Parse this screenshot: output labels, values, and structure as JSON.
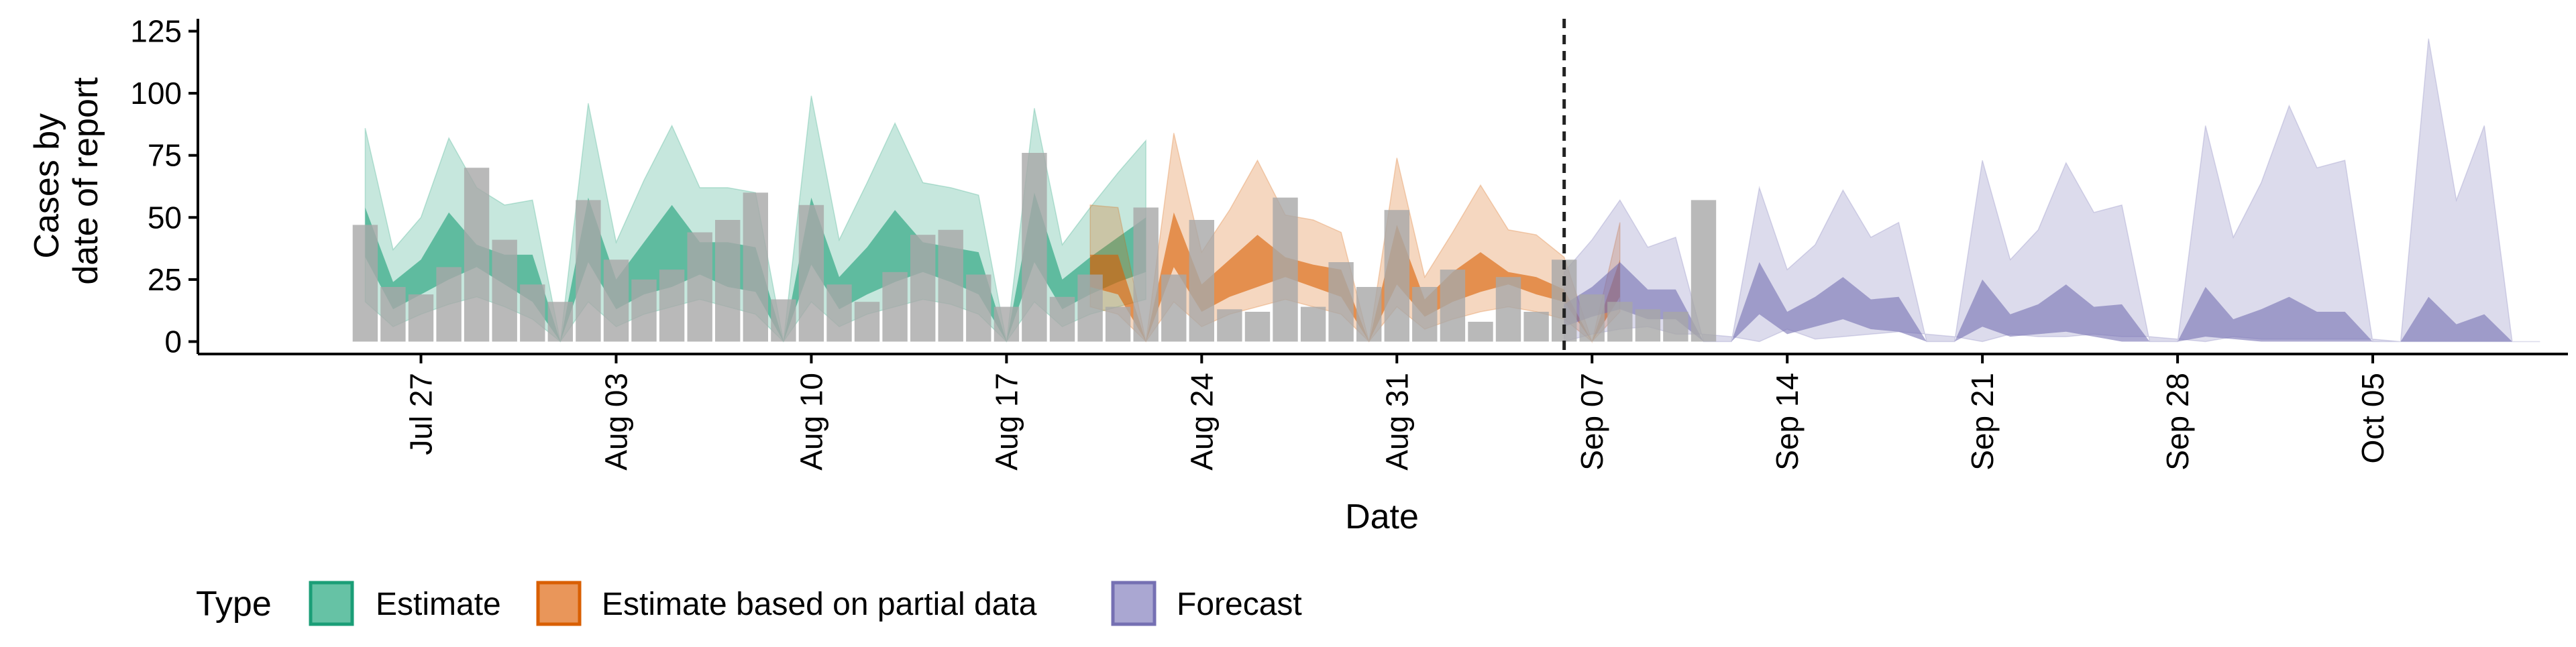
{
  "chart_data": {
    "type": "area",
    "title": "",
    "xlabel": "Date",
    "ylabel_lines": [
      "Cases by",
      "date of report"
    ],
    "ylim": [
      -5,
      130
    ],
    "yticks": [
      0,
      25,
      50,
      75,
      100,
      125
    ],
    "xlim": [
      "2020-07-19",
      "2020-10-12"
    ],
    "xticks": [
      {
        "date": "2020-07-27",
        "label": "Jul 27"
      },
      {
        "date": "2020-08-03",
        "label": "Aug 03"
      },
      {
        "date": "2020-08-10",
        "label": "Aug 10"
      },
      {
        "date": "2020-08-17",
        "label": "Aug 17"
      },
      {
        "date": "2020-08-24",
        "label": "Aug 24"
      },
      {
        "date": "2020-08-31",
        "label": "Aug 31"
      },
      {
        "date": "2020-09-07",
        "label": "Sep 07"
      },
      {
        "date": "2020-09-14",
        "label": "Sep 14"
      },
      {
        "date": "2020-09-21",
        "label": "Sep 21"
      },
      {
        "date": "2020-09-28",
        "label": "Sep 28"
      },
      {
        "date": "2020-10-05",
        "label": "Oct 05"
      }
    ],
    "forecast_date": "2020-09-06",
    "legend": {
      "title": "Type",
      "position": "bottom",
      "entries": [
        {
          "label": "Estimate",
          "fill": "#66c2a5",
          "stroke": "#1b9e77"
        },
        {
          "label": "Estimate based on partial data",
          "fill": "#e9965a",
          "stroke": "#d95f02"
        },
        {
          "label": "Forecast",
          "fill": "#aaa7d2",
          "stroke": "#7570b3"
        }
      ]
    },
    "bars": {
      "color": "#a8a8a8",
      "start_date": "2020-07-25",
      "values": [
        47,
        22,
        19,
        30,
        70,
        41,
        23,
        16,
        57,
        33,
        25,
        29,
        44,
        49,
        60,
        17,
        55,
        23,
        16,
        28,
        43,
        45,
        27,
        14,
        76,
        18,
        27,
        14,
        54,
        27,
        49,
        13,
        12,
        58,
        14,
        32,
        22,
        53,
        22,
        29,
        8,
        26,
        12,
        33,
        19,
        16,
        13,
        12,
        57
      ]
    },
    "series": [
      {
        "name": "Estimate",
        "color": "#1b9e77",
        "start_date": "2020-07-25",
        "ci90_lower": [
          16,
          6,
          11,
          15,
          18,
          14,
          9,
          0,
          16,
          6,
          11,
          14,
          17,
          14,
          11,
          0,
          16,
          6,
          11,
          14,
          17,
          15,
          11,
          0,
          16,
          6,
          11,
          14,
          17
        ],
        "ci90_upper": [
          86,
          37,
          50,
          82,
          62,
          55,
          57,
          0,
          96,
          40,
          65,
          87,
          62,
          62,
          60,
          0,
          99,
          41,
          64,
          88,
          64,
          62,
          59,
          0,
          94,
          39,
          54,
          68,
          81
        ],
        "ci50_lower": [
          34,
          13,
          19,
          25,
          30,
          23,
          16,
          0,
          32,
          13,
          19,
          22,
          27,
          22,
          20,
          0,
          31,
          13,
          19,
          24,
          28,
          24,
          19,
          0,
          32,
          13,
          19,
          24,
          28
        ],
        "ci50_upper": [
          54,
          24,
          33,
          52,
          39,
          35,
          35,
          0,
          58,
          25,
          40,
          55,
          40,
          40,
          38,
          0,
          58,
          26,
          38,
          53,
          40,
          38,
          36,
          0,
          60,
          25,
          34,
          42,
          50
        ]
      },
      {
        "name": "Estimate based on partial data",
        "color": "#d95f02",
        "start_date": "2020-08-20",
        "ci90_lower": [
          14,
          11,
          0,
          16,
          6,
          11,
          14,
          17,
          14,
          11,
          0,
          14,
          5,
          9,
          12,
          14,
          12,
          9,
          0,
          12
        ],
        "ci90_upper": [
          55,
          54,
          0,
          84,
          36,
          53,
          73,
          51,
          49,
          44,
          0,
          74,
          26,
          44,
          63,
          45,
          43,
          34,
          0,
          48
        ],
        "ci50_lower": [
          22,
          19,
          0,
          30,
          12,
          18,
          22,
          26,
          22,
          18,
          0,
          23,
          10,
          16,
          20,
          23,
          19,
          16,
          0,
          18
        ],
        "ci50_upper": [
          35,
          35,
          0,
          52,
          23,
          33,
          43,
          34,
          31,
          29,
          0,
          47,
          17,
          28,
          36,
          28,
          26,
          21,
          0,
          33
        ]
      },
      {
        "name": "Forecast",
        "color": "#7570b3",
        "start_date": "2020-09-06",
        "ci90_lower": [
          0,
          3,
          5,
          6,
          3,
          3,
          2,
          0,
          5,
          1,
          2,
          3,
          4,
          3,
          2,
          0,
          3,
          2,
          2,
          3,
          2,
          2,
          1,
          0,
          2,
          1,
          1,
          1,
          1,
          1,
          0,
          0,
          0,
          0,
          0,
          0
        ],
        "ci90_upper": [
          28,
          41,
          57,
          38,
          42,
          0,
          0,
          62,
          29,
          39,
          61,
          42,
          48,
          0,
          0,
          73,
          33,
          45,
          72,
          52,
          55,
          0,
          0,
          87,
          42,
          64,
          95,
          70,
          73,
          0,
          0,
          122,
          57,
          87,
          0,
          0
        ],
        "ci50_lower": [
          6,
          10,
          13,
          9,
          9,
          0,
          0,
          11,
          3,
          6,
          9,
          5,
          4,
          0,
          0,
          6,
          2,
          3,
          4,
          2,
          0,
          0,
          0,
          2,
          1,
          0,
          0,
          0,
          0,
          0,
          0,
          0,
          0,
          0,
          0,
          0
        ],
        "ci50_upper": [
          15,
          22,
          32,
          21,
          21,
          0,
          0,
          32,
          12,
          18,
          26,
          17,
          18,
          0,
          0,
          25,
          11,
          15,
          23,
          14,
          15,
          0,
          0,
          22,
          9,
          13,
          18,
          12,
          12,
          0,
          0,
          18,
          7,
          11,
          0,
          0
        ]
      }
    ]
  }
}
